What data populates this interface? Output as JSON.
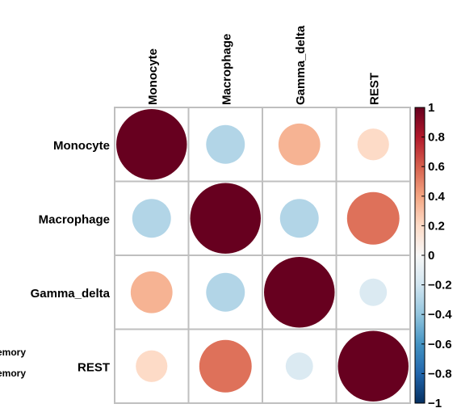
{
  "chart_data": {
    "type": "heatmap",
    "style": "correlation-circles",
    "variables": [
      "Monocyte",
      "Macrophage",
      "Gamma_delta",
      "REST"
    ],
    "matrix": [
      [
        1.0,
        -0.3,
        0.35,
        0.2
      ],
      [
        -0.3,
        1.0,
        -0.3,
        0.55
      ],
      [
        0.35,
        -0.3,
        1.0,
        -0.15
      ],
      [
        0.2,
        0.55,
        -0.15,
        1.0
      ]
    ],
    "colorbar": {
      "range": [
        -1,
        1
      ],
      "ticks": [
        "1",
        "0.8",
        "0.6",
        "0.4",
        "0.2",
        "0",
        "−0.2",
        "−0.4",
        "−0.6",
        "−0.8",
        "−1"
      ],
      "tick_values": [
        1,
        0.8,
        0.6,
        0.4,
        0.2,
        0,
        -0.2,
        -0.4,
        -0.6,
        -0.8,
        -1
      ]
    },
    "grid": true,
    "legend_placement": "right",
    "clipped_left_labels": [
      "emory",
      "emory"
    ]
  }
}
